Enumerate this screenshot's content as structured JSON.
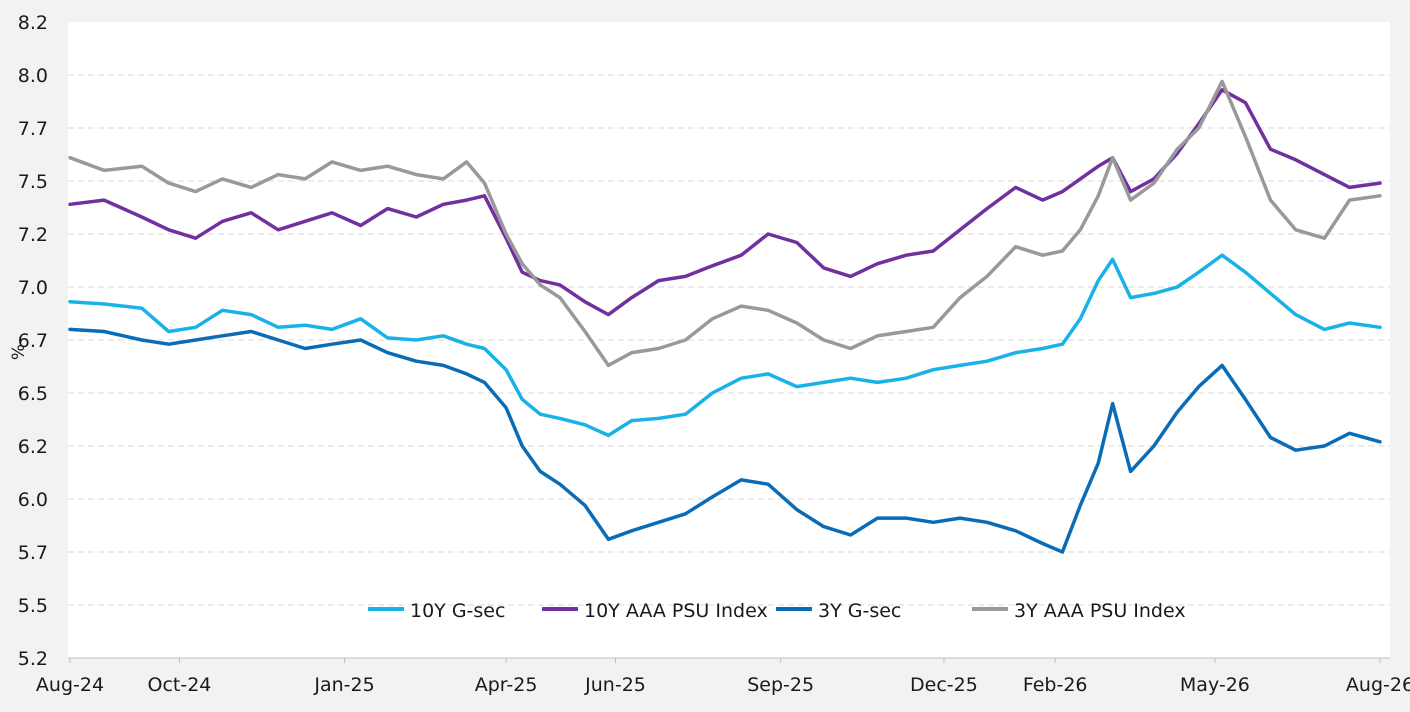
{
  "chart_data": {
    "type": "line",
    "title": "",
    "xlabel": "",
    "ylabel": "%",
    "ylim": [
      5.2,
      8.2
    ],
    "xlim": [
      "2024-08-01",
      "2026-08-01"
    ],
    "grid": "horizontal dashed",
    "legend_position": "bottom-center",
    "y_ticks": [
      "8.2",
      "8.0",
      "7.7",
      "7.5",
      "7.2",
      "7.0",
      "6.7",
      "6.5",
      "6.2",
      "6.0",
      "5.7",
      "5.5",
      "5.2"
    ],
    "y_tick_values": [
      8.2,
      7.95,
      7.7,
      7.45,
      7.2,
      6.95,
      6.7,
      6.45,
      6.2,
      5.95,
      5.7,
      5.45,
      5.2
    ],
    "x_ticks": [
      {
        "label": "Aug-24",
        "date": "2024-08-01"
      },
      {
        "label": "Oct-24",
        "date": "2024-10-01"
      },
      {
        "label": "Jan-25",
        "date": "2025-01-01"
      },
      {
        "label": "Apr-25",
        "date": "2025-04-01"
      },
      {
        "label": "Jun-25",
        "date": "2025-06-01"
      },
      {
        "label": "Sep-25",
        "date": "2025-09-01"
      },
      {
        "label": "Dec-25",
        "date": "2025-12-01"
      },
      {
        "label": "Feb-26",
        "date": "2026-02-01"
      },
      {
        "label": "May-26",
        "date": "2026-05-01"
      },
      {
        "label": "Aug-26",
        "date": "2026-08-01"
      }
    ],
    "series": [
      {
        "name": "10Y G-sec",
        "color": "#19b2e8",
        "points": [
          [
            "2024-08-01",
            6.88
          ],
          [
            "2024-08-20",
            6.87
          ],
          [
            "2024-09-10",
            6.85
          ],
          [
            "2024-09-25",
            6.74
          ],
          [
            "2024-10-10",
            6.76
          ],
          [
            "2024-10-25",
            6.84
          ],
          [
            "2024-11-10",
            6.82
          ],
          [
            "2024-11-25",
            6.76
          ],
          [
            "2024-12-10",
            6.77
          ],
          [
            "2024-12-25",
            6.75
          ],
          [
            "2025-01-10",
            6.8
          ],
          [
            "2025-01-25",
            6.71
          ],
          [
            "2025-02-10",
            6.7
          ],
          [
            "2025-02-25",
            6.72
          ],
          [
            "2025-03-10",
            6.68
          ],
          [
            "2025-03-20",
            6.66
          ],
          [
            "2025-04-01",
            6.56
          ],
          [
            "2025-04-10",
            6.42
          ],
          [
            "2025-04-20",
            6.35
          ],
          [
            "2025-05-01",
            6.33
          ],
          [
            "2025-05-15",
            6.3
          ],
          [
            "2025-05-28",
            6.25
          ],
          [
            "2025-06-10",
            6.32
          ],
          [
            "2025-06-25",
            6.33
          ],
          [
            "2025-07-10",
            6.35
          ],
          [
            "2025-07-25",
            6.45
          ],
          [
            "2025-08-10",
            6.52
          ],
          [
            "2025-08-25",
            6.54
          ],
          [
            "2025-09-10",
            6.48
          ],
          [
            "2025-09-25",
            6.5
          ],
          [
            "2025-10-10",
            6.52
          ],
          [
            "2025-10-25",
            6.5
          ],
          [
            "2025-11-10",
            6.52
          ],
          [
            "2025-11-25",
            6.56
          ],
          [
            "2025-12-10",
            6.58
          ],
          [
            "2025-12-25",
            6.6
          ],
          [
            "2026-01-10",
            6.64
          ],
          [
            "2026-01-25",
            6.66
          ],
          [
            "2026-02-05",
            6.68
          ],
          [
            "2026-02-15",
            6.8
          ],
          [
            "2026-02-25",
            6.98
          ],
          [
            "2026-03-05",
            7.08
          ],
          [
            "2026-03-15",
            6.9
          ],
          [
            "2026-03-28",
            6.92
          ],
          [
            "2026-04-10",
            6.95
          ],
          [
            "2026-04-22",
            7.02
          ],
          [
            "2026-05-05",
            7.1
          ],
          [
            "2026-05-18",
            7.02
          ],
          [
            "2026-06-01",
            6.92
          ],
          [
            "2026-06-15",
            6.82
          ],
          [
            "2026-07-01",
            6.75
          ],
          [
            "2026-07-15",
            6.78
          ],
          [
            "2026-08-01",
            6.76
          ]
        ]
      },
      {
        "name": "10Y AAA PSU Index",
        "color": "#7030a0",
        "points": [
          [
            "2024-08-01",
            7.34
          ],
          [
            "2024-08-20",
            7.36
          ],
          [
            "2024-09-10",
            7.28
          ],
          [
            "2024-09-25",
            7.22
          ],
          [
            "2024-10-10",
            7.18
          ],
          [
            "2024-10-25",
            7.26
          ],
          [
            "2024-11-10",
            7.3
          ],
          [
            "2024-11-25",
            7.22
          ],
          [
            "2024-12-10",
            7.26
          ],
          [
            "2024-12-25",
            7.3
          ],
          [
            "2025-01-10",
            7.24
          ],
          [
            "2025-01-25",
            7.32
          ],
          [
            "2025-02-10",
            7.28
          ],
          [
            "2025-02-25",
            7.34
          ],
          [
            "2025-03-10",
            7.36
          ],
          [
            "2025-03-20",
            7.38
          ],
          [
            "2025-04-01",
            7.18
          ],
          [
            "2025-04-10",
            7.02
          ],
          [
            "2025-04-20",
            6.98
          ],
          [
            "2025-05-01",
            6.96
          ],
          [
            "2025-05-15",
            6.88
          ],
          [
            "2025-05-28",
            6.82
          ],
          [
            "2025-06-10",
            6.9
          ],
          [
            "2025-06-25",
            6.98
          ],
          [
            "2025-07-10",
            7.0
          ],
          [
            "2025-07-25",
            7.05
          ],
          [
            "2025-08-10",
            7.1
          ],
          [
            "2025-08-25",
            7.2
          ],
          [
            "2025-09-10",
            7.16
          ],
          [
            "2025-09-25",
            7.04
          ],
          [
            "2025-10-10",
            7.0
          ],
          [
            "2025-10-25",
            7.06
          ],
          [
            "2025-11-10",
            7.1
          ],
          [
            "2025-11-25",
            7.12
          ],
          [
            "2025-12-10",
            7.22
          ],
          [
            "2025-12-25",
            7.32
          ],
          [
            "2026-01-10",
            7.42
          ],
          [
            "2026-01-25",
            7.36
          ],
          [
            "2026-02-05",
            7.4
          ],
          [
            "2026-02-15",
            7.46
          ],
          [
            "2026-02-25",
            7.52
          ],
          [
            "2026-03-05",
            7.56
          ],
          [
            "2026-03-15",
            7.4
          ],
          [
            "2026-03-28",
            7.46
          ],
          [
            "2026-04-10",
            7.58
          ],
          [
            "2026-04-22",
            7.72
          ],
          [
            "2026-05-05",
            7.88
          ],
          [
            "2026-05-18",
            7.82
          ],
          [
            "2026-06-01",
            7.6
          ],
          [
            "2026-06-15",
            7.55
          ],
          [
            "2026-07-01",
            7.48
          ],
          [
            "2026-07-15",
            7.42
          ],
          [
            "2026-08-01",
            7.44
          ]
        ]
      },
      {
        "name": "3Y G-sec",
        "color": "#0a6cb6",
        "points": [
          [
            "2024-08-01",
            6.75
          ],
          [
            "2024-08-20",
            6.74
          ],
          [
            "2024-09-10",
            6.7
          ],
          [
            "2024-09-25",
            6.68
          ],
          [
            "2024-10-10",
            6.7
          ],
          [
            "2024-10-25",
            6.72
          ],
          [
            "2024-11-10",
            6.74
          ],
          [
            "2024-11-25",
            6.7
          ],
          [
            "2024-12-10",
            6.66
          ],
          [
            "2024-12-25",
            6.68
          ],
          [
            "2025-01-10",
            6.7
          ],
          [
            "2025-01-25",
            6.64
          ],
          [
            "2025-02-10",
            6.6
          ],
          [
            "2025-02-25",
            6.58
          ],
          [
            "2025-03-10",
            6.54
          ],
          [
            "2025-03-20",
            6.5
          ],
          [
            "2025-04-01",
            6.38
          ],
          [
            "2025-04-10",
            6.2
          ],
          [
            "2025-04-20",
            6.08
          ],
          [
            "2025-05-01",
            6.02
          ],
          [
            "2025-05-15",
            5.92
          ],
          [
            "2025-05-28",
            5.76
          ],
          [
            "2025-06-10",
            5.8
          ],
          [
            "2025-06-25",
            5.84
          ],
          [
            "2025-07-10",
            5.88
          ],
          [
            "2025-07-25",
            5.96
          ],
          [
            "2025-08-10",
            6.04
          ],
          [
            "2025-08-25",
            6.02
          ],
          [
            "2025-09-10",
            5.9
          ],
          [
            "2025-09-25",
            5.82
          ],
          [
            "2025-10-10",
            5.78
          ],
          [
            "2025-10-25",
            5.86
          ],
          [
            "2025-11-10",
            5.86
          ],
          [
            "2025-11-25",
            5.84
          ],
          [
            "2025-12-10",
            5.86
          ],
          [
            "2025-12-25",
            5.84
          ],
          [
            "2026-01-10",
            5.8
          ],
          [
            "2026-01-25",
            5.74
          ],
          [
            "2026-02-05",
            5.7
          ],
          [
            "2026-02-15",
            5.92
          ],
          [
            "2026-02-25",
            6.12
          ],
          [
            "2026-03-05",
            6.4
          ],
          [
            "2026-03-15",
            6.08
          ],
          [
            "2026-03-28",
            6.2
          ],
          [
            "2026-04-10",
            6.36
          ],
          [
            "2026-04-22",
            6.48
          ],
          [
            "2026-05-05",
            6.58
          ],
          [
            "2026-05-18",
            6.42
          ],
          [
            "2026-06-01",
            6.24
          ],
          [
            "2026-06-15",
            6.18
          ],
          [
            "2026-07-01",
            6.2
          ],
          [
            "2026-07-15",
            6.26
          ],
          [
            "2026-08-01",
            6.22
          ]
        ]
      },
      {
        "name": "3Y AAA PSU Index",
        "color": "#999999",
        "points": [
          [
            "2024-08-01",
            7.56
          ],
          [
            "2024-08-20",
            7.5
          ],
          [
            "2024-09-10",
            7.52
          ],
          [
            "2024-09-25",
            7.44
          ],
          [
            "2024-10-10",
            7.4
          ],
          [
            "2024-10-25",
            7.46
          ],
          [
            "2024-11-10",
            7.42
          ],
          [
            "2024-11-25",
            7.48
          ],
          [
            "2024-12-10",
            7.46
          ],
          [
            "2024-12-25",
            7.54
          ],
          [
            "2025-01-10",
            7.5
          ],
          [
            "2025-01-25",
            7.52
          ],
          [
            "2025-02-10",
            7.48
          ],
          [
            "2025-02-25",
            7.46
          ],
          [
            "2025-03-10",
            7.54
          ],
          [
            "2025-03-20",
            7.44
          ],
          [
            "2025-04-01",
            7.2
          ],
          [
            "2025-04-10",
            7.06
          ],
          [
            "2025-04-20",
            6.96
          ],
          [
            "2025-05-01",
            6.9
          ],
          [
            "2025-05-15",
            6.74
          ],
          [
            "2025-05-28",
            6.58
          ],
          [
            "2025-06-10",
            6.64
          ],
          [
            "2025-06-25",
            6.66
          ],
          [
            "2025-07-10",
            6.7
          ],
          [
            "2025-07-25",
            6.8
          ],
          [
            "2025-08-10",
            6.86
          ],
          [
            "2025-08-25",
            6.84
          ],
          [
            "2025-09-10",
            6.78
          ],
          [
            "2025-09-25",
            6.7
          ],
          [
            "2025-10-10",
            6.66
          ],
          [
            "2025-10-25",
            6.72
          ],
          [
            "2025-11-10",
            6.74
          ],
          [
            "2025-11-25",
            6.76
          ],
          [
            "2025-12-10",
            6.9
          ],
          [
            "2025-12-25",
            7.0
          ],
          [
            "2026-01-10",
            7.14
          ],
          [
            "2026-01-25",
            7.1
          ],
          [
            "2026-02-05",
            7.12
          ],
          [
            "2026-02-15",
            7.22
          ],
          [
            "2026-02-25",
            7.38
          ],
          [
            "2026-03-05",
            7.56
          ],
          [
            "2026-03-15",
            7.36
          ],
          [
            "2026-03-28",
            7.44
          ],
          [
            "2026-04-10",
            7.6
          ],
          [
            "2026-04-22",
            7.7
          ],
          [
            "2026-05-05",
            7.92
          ],
          [
            "2026-05-18",
            7.66
          ],
          [
            "2026-06-01",
            7.36
          ],
          [
            "2026-06-15",
            7.22
          ],
          [
            "2026-07-01",
            7.18
          ],
          [
            "2026-07-15",
            7.36
          ],
          [
            "2026-08-01",
            7.38
          ]
        ]
      }
    ]
  }
}
